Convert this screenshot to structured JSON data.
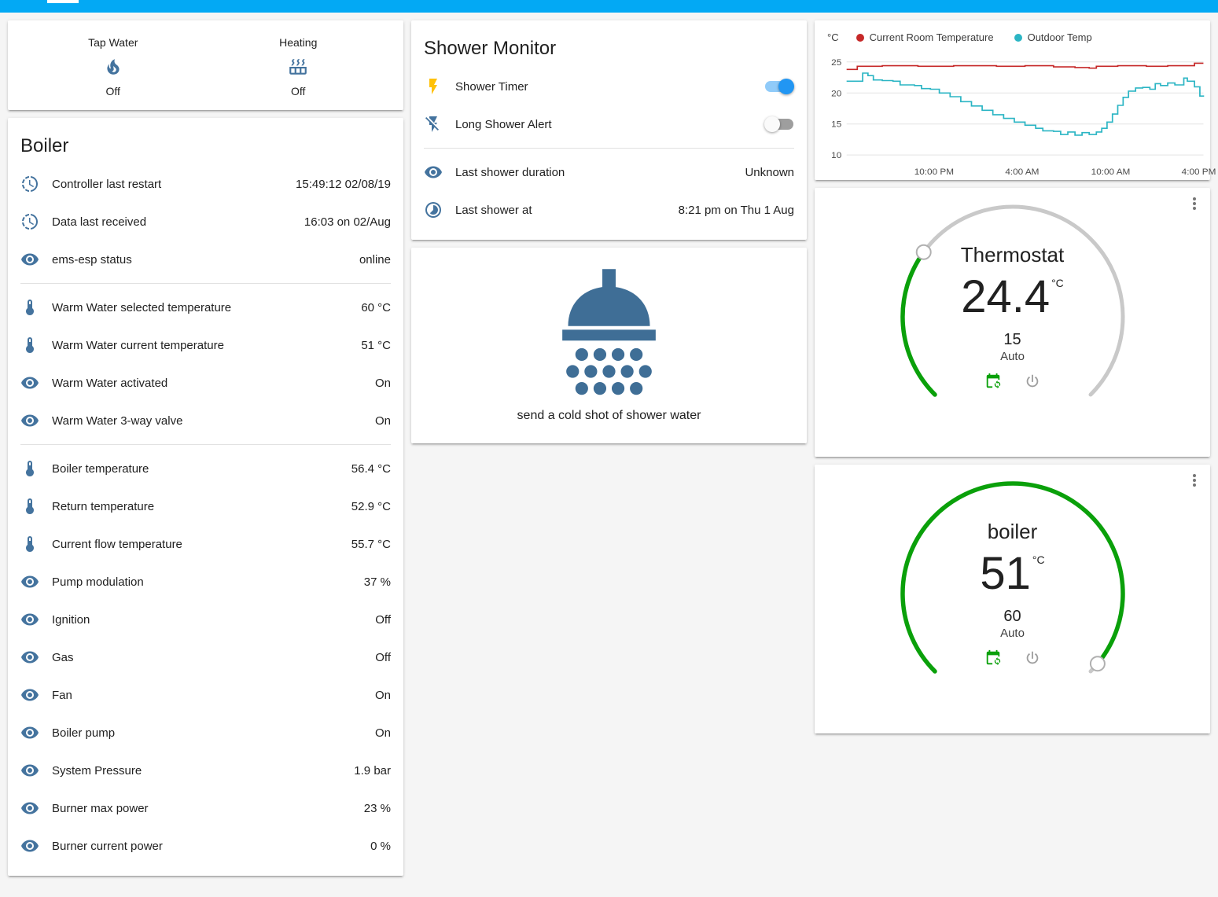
{
  "colors": {
    "app_bar": "#03a9f4",
    "icon": "#44739e",
    "flash_on": "#ffc107",
    "toggle_on_thumb": "#2196f3",
    "toggle_on_track": "#90cbf9",
    "toggle_off_thumb": "#fafafa",
    "toggle_off_track": "#9e9e9e",
    "gauge_green": "#0aa00a",
    "gauge_track": "#c9c9c9",
    "power_gray": "#9e9e9e",
    "menu_gray": "#757575",
    "shower_blue": "#3f6e96"
  },
  "glance_card": {
    "items": [
      {
        "label": "Tap Water",
        "icon": "fire",
        "state": "Off"
      },
      {
        "label": "Heating",
        "icon": "radiator",
        "state": "Off"
      }
    ]
  },
  "boiler_card": {
    "title": "Boiler",
    "rows": [
      {
        "icon": "progress-clock",
        "label": "Controller last restart",
        "value": "15:49:12 02/08/19"
      },
      {
        "icon": "progress-clock",
        "label": "Data last received",
        "value": "16:03 on 02/Aug"
      },
      {
        "icon": "eye",
        "label": "ems-esp status",
        "value": "online"
      },
      {
        "divider": true
      },
      {
        "icon": "thermometer",
        "label": "Warm Water selected temperature",
        "value": "60 °C"
      },
      {
        "icon": "thermometer",
        "label": "Warm Water current temperature",
        "value": "51 °C"
      },
      {
        "icon": "eye",
        "label": "Warm Water activated",
        "value": "On"
      },
      {
        "icon": "eye",
        "label": "Warm Water 3-way valve",
        "value": "On"
      },
      {
        "divider": true
      },
      {
        "icon": "thermometer",
        "label": "Boiler temperature",
        "value": "56.4 °C"
      },
      {
        "icon": "thermometer",
        "label": "Return temperature",
        "value": "52.9 °C"
      },
      {
        "icon": "thermometer",
        "label": "Current flow temperature",
        "value": "55.7 °C"
      },
      {
        "icon": "eye",
        "label": "Pump modulation",
        "value": "37 %"
      },
      {
        "icon": "eye",
        "label": "Ignition",
        "value": "Off"
      },
      {
        "icon": "eye",
        "label": "Gas",
        "value": "Off"
      },
      {
        "icon": "eye",
        "label": "Fan",
        "value": "On"
      },
      {
        "icon": "eye",
        "label": "Boiler pump",
        "value": "On"
      },
      {
        "icon": "eye",
        "label": "System Pressure",
        "value": "1.9 bar"
      },
      {
        "icon": "eye",
        "label": "Burner max power",
        "value": "23 %"
      },
      {
        "icon": "eye",
        "label": "Burner current power",
        "value": "0 %"
      }
    ]
  },
  "shower_card": {
    "title": "Shower Monitor",
    "rows": [
      {
        "icon": "flash",
        "icon_color": "#ffc107",
        "label": "Shower Timer",
        "toggle": true,
        "on": true
      },
      {
        "icon": "flash-off",
        "label": "Long Shower Alert",
        "toggle": true,
        "on": false
      },
      {
        "divider": true
      },
      {
        "icon": "eye",
        "label": "Last shower duration",
        "value": "Unknown"
      },
      {
        "icon": "timelapse",
        "label": "Last shower at",
        "value": "8:21 pm on Thu 1 Aug"
      }
    ]
  },
  "shower_action_card": {
    "label": "send a cold shot of shower water"
  },
  "chart_data": {
    "type": "line",
    "title": "",
    "ylabel": "°C",
    "ylim": [
      9,
      26.5
    ],
    "y_ticks": [
      25,
      20,
      15,
      10
    ],
    "grid": true,
    "legend_position": "top",
    "x_ticks": [
      {
        "f": 0.245,
        "label": "10:00 PM"
      },
      {
        "f": 0.492,
        "label": "4:00 AM"
      },
      {
        "f": 0.74,
        "label": "10:00 AM"
      },
      {
        "f": 0.987,
        "label": "4:00 PM"
      }
    ],
    "series": [
      {
        "name": "Current Room Temperature",
        "color": "#c62828",
        "points": [
          [
            0,
            23.8
          ],
          [
            0.03,
            24.3
          ],
          [
            0.1,
            24.4
          ],
          [
            0.2,
            24.3
          ],
          [
            0.3,
            24.4
          ],
          [
            0.42,
            24.3
          ],
          [
            0.5,
            24.4
          ],
          [
            0.58,
            24.2
          ],
          [
            0.64,
            24.1
          ],
          [
            0.68,
            24.0
          ],
          [
            0.7,
            24.3
          ],
          [
            0.76,
            24.4
          ],
          [
            0.84,
            24.3
          ],
          [
            0.9,
            24.4
          ],
          [
            0.965,
            24.4
          ],
          [
            0.975,
            24.8
          ],
          [
            1,
            24.8
          ]
        ]
      },
      {
        "name": "Outdoor Temp",
        "color": "#2bb5c4",
        "points": [
          [
            0,
            21.9
          ],
          [
            0.045,
            23.2
          ],
          [
            0.06,
            22.8
          ],
          [
            0.075,
            22.1
          ],
          [
            0.1,
            22.0
          ],
          [
            0.13,
            21.9
          ],
          [
            0.15,
            21.3
          ],
          [
            0.19,
            21.2
          ],
          [
            0.21,
            20.7
          ],
          [
            0.235,
            20.6
          ],
          [
            0.26,
            20.0
          ],
          [
            0.29,
            19.4
          ],
          [
            0.32,
            18.6
          ],
          [
            0.35,
            17.9
          ],
          [
            0.38,
            17.2
          ],
          [
            0.41,
            16.5
          ],
          [
            0.44,
            15.9
          ],
          [
            0.47,
            15.3
          ],
          [
            0.5,
            14.8
          ],
          [
            0.53,
            14.3
          ],
          [
            0.55,
            13.9
          ],
          [
            0.58,
            13.8
          ],
          [
            0.6,
            13.3
          ],
          [
            0.62,
            13.7
          ],
          [
            0.64,
            13.2
          ],
          [
            0.66,
            13.6
          ],
          [
            0.68,
            13.3
          ],
          [
            0.7,
            13.7
          ],
          [
            0.715,
            14.3
          ],
          [
            0.73,
            15.3
          ],
          [
            0.745,
            16.6
          ],
          [
            0.76,
            18.0
          ],
          [
            0.775,
            19.3
          ],
          [
            0.79,
            20.3
          ],
          [
            0.81,
            20.8
          ],
          [
            0.83,
            20.9
          ],
          [
            0.85,
            20.6
          ],
          [
            0.865,
            21.5
          ],
          [
            0.88,
            21.2
          ],
          [
            0.9,
            21.6
          ],
          [
            0.92,
            21.3
          ],
          [
            0.945,
            22.4
          ],
          [
            0.955,
            21.9
          ],
          [
            0.975,
            21.0
          ],
          [
            0.99,
            19.5
          ],
          [
            1,
            19.4
          ]
        ]
      }
    ]
  },
  "thermostat_card": {
    "title": "Thermostat",
    "value": "24.4",
    "unit": "°C",
    "setpoint": "15",
    "mode": "Auto",
    "fraction": 0.3
  },
  "boiler_gauge_card": {
    "title": "boiler",
    "value": "51",
    "unit": "°C",
    "setpoint": "60",
    "mode": "Auto",
    "fraction": 0.98
  },
  "icons": {
    "fire": [
      "M17.66,11.2C17.43,10.9 17.15,10.64 16.89,10.38C16.22,9.78 15.46,9.35 14.82,8.72C13.33,7.26 13,4.85 13.95,3C13,3.23 12.17,3.75 11.46,4.32C8.87,6.4 7.85,10.07 9.07,13.22C9.11,13.32 9.15,13.42 9.15,13.55C9.15,13.77 9,13.97 8.8,14.05C8.57,14.15 8.33,14.09 8.14,13.93C8.08,13.88 8.04,13.83 8,13.76C6.87,12.33 6.69,10.28 7.45,8.64C5.78,10 4.87,12.3 5,14.47C5.06,14.97 5.12,15.47 5.29,15.97C5.43,16.57 5.7,17.17 6,17.7C7.08,19.43 8.95,20.67 10.96,20.92C13.1,21.19 15.39,20.8 17.03,19.32C18.86,17.66 19.5,15 18.56,12.72L18.43,12.46C18.22,12 17.66,11.2 17.66,11.2M14.5,17.5C14.22,17.74 13.76,18 13.4,18.1C12.28,18.5 11.16,17.94 10.5,17.28C11.69,17 12.4,16.12 12.61,15.23C12.78,14.43 12.46,13.77 12.33,13C12.21,12.26 12.23,11.63 12.5,10.94C12.69,11.32 12.89,11.7 13.13,12C13.9,13 15.11,13.44 15.37,14.8C15.41,14.94 15.43,15.08 15.43,15.23C15.46,16.05 15.1,16.95 14.5,17.5Z"
    ],
    "radiator": [
      "M7.95,3L6.53,5.19L7.95,7.4H7.94L5.95,10.5H4L5.97,7.46L4.54,5.25L5.99,3H7.95M13.95,3L12.53,5.19L13.95,7.4H13.94L11.95,10.5H10L11.97,7.46L10.54,5.25L11.99,3H13.95M19.95,3L18.53,5.19L19.95,7.4H19.94L17.95,10.5H16L17.97,7.46L16.54,5.25L17.99,3H19.95M2,12H22V19C22,20.11 21.11,21 20,21H4C2.9,21 2,20.11 2,19V12M4,14V19H8V14H4M10,14V19H14V14H10M16,14V19H20V14H16Z"
    ],
    "progress-clock": [
      "M13,2.03V2.05L13,4.05C17.39,4.59 20.5,8.58 19.96,12.97C19.5,16.61 16.64,19.5 13,19.93V21.93C18.5,21.38 22.5,16.5 21.95,11C21.5,6.25 17.73,2.5 13,2.03M11,2.06C9.05,2.25 7.19,3 5.67,4.26L7.1,5.74C8.22,4.84 9.57,4.26 11,4.06V2.06M4.26,5.67C3,7.19 2.25,9.04 2.05,11H4.05C4.24,9.58 4.8,8.23 5.69,7.1L4.26,5.67M2.06,13C2.26,14.96 3.03,16.81 4.27,18.33L5.69,16.9C4.81,15.77 4.24,14.42 4.06,13H2.06M7.1,18.37L5.67,19.74C7.18,21 9.04,21.79 11,22V20C9.58,19.82 8.23,19.25 7.1,18.37M12.5,7V12.25L17,14.92L16.25,16.15L11,13V7H12.5Z"
    ],
    "eye": [
      "M12,9A3,3 0 0,0 9,12A3,3 0 0,0 12,15A3,3 0 0,0 15,12A3,3 0 0,0 12,9M12,17A5,5 0 0,1 7,12A5,5 0 0,1 12,7A5,5 0 0,1 17,12A5,5 0 0,1 12,17M12,4.5C7,4.5 2.73,7.61 1,12C2.73,16.39 7,19.5 12,19.5C17,19.5 21.27,16.39 23,12C21.27,7.61 17,4.5 12,4.5Z"
    ],
    "thermometer": [
      "M15,13V5A3,3 0 0,0 9,5V13A5,5 0 1,0 15,13M12,4A1,1 0 0,1 13,5V8H11V5A1,1 0 0,1 12,4Z"
    ],
    "flash": [
      "M7,2V13H10V22L17,10H13L17,2H7Z"
    ],
    "flash-off": [
      "M17,10H13L17,2H7V4.18L15.46,12.64L17,10M3.27,3L2,4.27L7,9.27V13H10V22L13.58,15.86L17.73,20L19,18.73L3.27,3Z"
    ],
    "timelapse": [
      "M16.24,7.76C15.07,6.58 13.54,6 12,6V12L7.76,16.24C10.1,18.58 13.9,18.58 16.24,16.24C18.59,13.9 18.59,10.1 16.24,7.76M12,2A10,10 0 0,0 2,12A10,10 0 0,0 12,22A10,10 0 0,0 22,12A10,10 0 0,0 12,2M12,20A8,8 0 0,1 4,12A8,8 0 0,1 12,4A8,8 0 0,1 20,12A8,8 0 0,1 12,20Z"
    ],
    "calendar-sync": [
      "M18,11V12.5C21.19,12.5 23.09,16.05 21.33,18.71L20.24,17.62C21.06,15.96 19.85,14 18,14V15.5L15.75,13.25L18,11M18,22V20.5C14.81,20.5 12.91,16.95 14.67,14.29L15.76,15.38C14.94,17.04 16.15,19 18,19V17.5L20.25,19.75L18,22M19,3H18V1H16V3H8V1H6V3H5C3.89,3 3,3.9 3,5V19A2,2 0 0,0 5,21H11.1C11.04,20.67 11,20.34 11,20C11,19.66 11.04,19.33 11.1,19H5V8H19V10.1C19.33,10.04 19.66,10 20,10C20.34,10 20.67,10.04 21,10.1V5C21,3.9 20.11,3 19,3Z"
    ],
    "power": [
      "M16.56,5.44L15.11,6.89C16.84,7.94 18,9.83 18,12A6,6 0 0,1 12,18A6,6 0 0,1 6,12C6,9.83 7.16,7.94 8.88,6.88L7.44,5.44C5.36,6.88 4,9.28 4,12A8,8 0 0,0 12,20A8,8 0 0,0 20,12C20,9.28 18.64,6.88 16.56,5.44M13,3H11V13H13V3Z"
    ],
    "dots-vertical": [
      "M12,16A2,2 0 0,1 14,18A2,2 0 0,1 12,20A2,2 0 0,1 10,18A2,2 0 0,1 12,16M12,10A2,2 0 0,1 14,12A2,2 0 0,1 12,14A2,2 0 0,1 10,12A2,2 0 0,1 12,10M12,4A2,2 0 0,1 14,6A2,2 0 0,1 12,8A2,2 0 0,1 10,6A2,2 0 0,1 12,4Z"
    ],
    "shower": [
      "M10.9 1.2h2.2v3.3h-2.2z",
      "M12 4.1c-3.85 0-6.75 2.5-6.75 6.5h13.5c0-4-2.9-6.5-6.75-6.5z",
      "M4.3 11.2h15.4v1.8H4.3z",
      "M6.45 15.3a1.05 1.05 0 1 0 2.1 0a1.05 1.05 0 1 0 -2.1 0z",
      "M9.45 15.3a1.05 1.05 0 1 0 2.1 0a1.05 1.05 0 1 0 -2.1 0z",
      "M12.45 15.3a1.05 1.05 0 1 0 2.1 0a1.05 1.05 0 1 0 -2.1 0z",
      "M15.45 15.3a1.05 1.05 0 1 0 2.1 0a1.05 1.05 0 1 0 -2.1 0z",
      "M4.95 18.1a1.05 1.05 0 1 0 2.1 0a1.05 1.05 0 1 0 -2.1 0z",
      "M7.95 18.1a1.05 1.05 0 1 0 2.1 0a1.05 1.05 0 1 0 -2.1 0z",
      "M10.95 18.1a1.05 1.05 0 1 0 2.1 0a1.05 1.05 0 1 0 -2.1 0z",
      "M13.95 18.1a1.05 1.05 0 1 0 2.1 0a1.05 1.05 0 1 0 -2.1 0z",
      "M16.95 18.1a1.05 1.05 0 1 0 2.1 0a1.05 1.05 0 1 0 -2.1 0z",
      "M6.45 20.9a1.05 1.05 0 1 0 2.1 0a1.05 1.05 0 1 0 -2.1 0z",
      "M9.45 20.9a1.05 1.05 0 1 0 2.1 0a1.05 1.05 0 1 0 -2.1 0z",
      "M12.45 20.9a1.05 1.05 0 1 0 2.1 0a1.05 1.05 0 1 0 -2.1 0z",
      "M15.45 20.9a1.05 1.05 0 1 0 2.1 0a1.05 1.05 0 1 0 -2.1 0z"
    ]
  }
}
